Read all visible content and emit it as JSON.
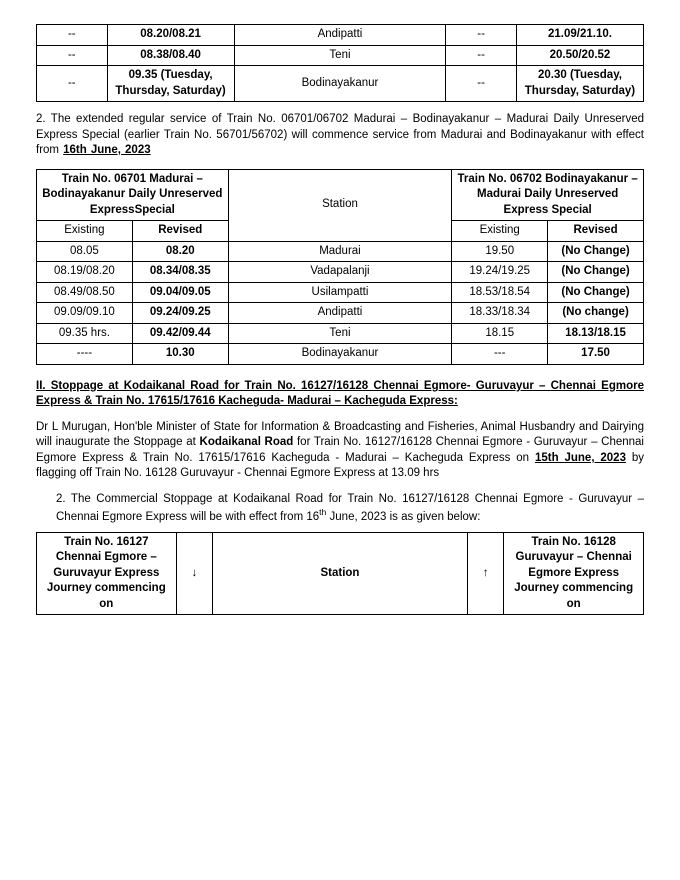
{
  "table1": {
    "rows": [
      [
        "--",
        "08.20/08.21",
        "Andipatti",
        "--",
        "21.09/21.10."
      ],
      [
        "--",
        "08.38/08.40",
        "Teni",
        "--",
        "20.50/20.52"
      ],
      [
        "--",
        "09.35 (Tuesday, Thursday, Saturday)",
        "Bodinayakanur",
        "--",
        "20.30 (Tuesday, Thursday, Saturday)"
      ]
    ]
  },
  "para1_prefix": "2. The extended regular service of Train No. 06701/06702 Madurai – Bodinayakanur – Madurai Daily Unreserved Express Special (earlier Train No. 56701/56702) will commence service from Madurai and Bodinayakanur with effect from ",
  "para1_date": "16th June, 2023",
  "table2": {
    "head_left": "Train No. 06701 Madurai – Bodinayakanur Daily Unreserved ExpressSpecial",
    "head_station": "Station",
    "head_right": "Train No. 06702 Bodinayakanur – Madurai Daily Unreserved Express Special",
    "sub": [
      "Existing",
      "Revised",
      "Existing",
      "Revised"
    ],
    "rows": [
      [
        "08.05",
        "08.20",
        "Madurai",
        "19.50",
        "(No Change)"
      ],
      [
        "08.19/08.20",
        "08.34/08.35",
        "Vadapalanji",
        "19.24/19.25",
        "(No Change)"
      ],
      [
        "08.49/08.50",
        "09.04/09.05",
        "Usilampatti",
        "18.53/18.54",
        "(No Change)"
      ],
      [
        "09.09/09.10",
        "09.24/09.25",
        "Andipatti",
        "18.33/18.34",
        "(No change)"
      ],
      [
        "09.35 hrs.",
        "09.42/09.44",
        "Teni",
        "18.15",
        "18.13/18.15"
      ],
      [
        "----",
        "10.30",
        "Bodinayakanur",
        "---",
        "17.50"
      ]
    ]
  },
  "heading2": "II. Stoppage at Kodaikanal Road for Train No. 16127/16128 Chennai Egmore- Guruvayur – Chennai Egmore Express & Train No. 17615/17616 Kacheguda- Madurai – Kacheguda Express:",
  "para2a": "Dr L Murugan, Hon'ble Minister of State for Information & Broadcasting and Fisheries, Animal Husbandry and Dairying will inaugurate the Stoppage at ",
  "para2b_bold": "Kodaikanal Road",
  "para2c": " for Train No. 16127/16128 Chennai Egmore - Guruvayur – Chennai Egmore Express & Train No. 17615/17616 Kacheguda - Madurai – Kacheguda Express on ",
  "para2d_bold": "15th June, 2023",
  "para2e": " by flagging off Train No. 16128 Guruvayur - Chennai Egmore Express at 13.09 hrs",
  "num2_a": "2. The Commercial Stoppage at Kodaikanal Road for Train No. 16127/16128 Chennai Egmore - Guruvayur – Chennai Egmore Express will be with effect from 16",
  "num2_b": "th",
  "num2_c": " June, 2023 is as given below:",
  "table3": {
    "left": "Train No. 16127 Chennai Egmore – Guruvayur Express Journey commencing on",
    "down": "↓",
    "station": "Station",
    "up": "↑",
    "right": "Train No. 16128 Guruvayur – Chennai Egmore Express Journey commencing on"
  }
}
